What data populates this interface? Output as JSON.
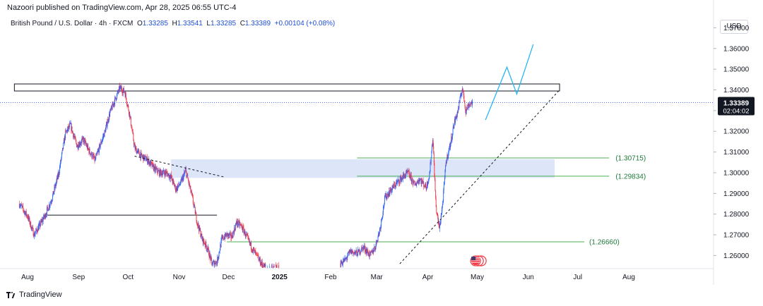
{
  "header": {
    "publisher": "Nazoori published on TradingView.com, Apr 28, 2025 06:55 UTC-4"
  },
  "legend": {
    "symbol": "British Pound / U.S. Dollar · 4h · FXCM",
    "open_label": "O",
    "open": "1.33285",
    "high_label": "H",
    "high": "1.33541",
    "low_label": "L",
    "low": "1.33285",
    "close_label": "C",
    "close": "1.33389",
    "change": "+0.00104 (+0.08%)"
  },
  "currency": "USD",
  "brand": "TradingView",
  "colors": {
    "up": "#2962ff",
    "down": "#f23645",
    "green_line": "#4caf50",
    "zone_fill": "#dce6f8",
    "projection": "#29b6f6",
    "price_tag": "#131722"
  },
  "chart_data": {
    "type": "candlestick",
    "y_ticks": [
      "1.37000",
      "1.36000",
      "1.35000",
      "1.34000",
      "1.33000",
      "1.32000",
      "1.31000",
      "1.30000",
      "1.29000",
      "1.28000",
      "1.27000",
      "1.26000"
    ],
    "ylim": [
      1.254,
      1.3773
    ],
    "x_ticks": [
      {
        "label": "Aug",
        "date": "2024-08-01"
      },
      {
        "label": "Sep",
        "date": "2024-09-01"
      },
      {
        "label": "Oct",
        "date": "2024-10-01"
      },
      {
        "label": "Nov",
        "date": "2024-11-01"
      },
      {
        "label": "Dec",
        "date": "2024-12-01"
      },
      {
        "label": "2025",
        "date": "2025-01-01",
        "bold": true
      },
      {
        "label": "Feb",
        "date": "2025-02-01"
      },
      {
        "label": "Mar",
        "date": "2025-03-01"
      },
      {
        "label": "Apr",
        "date": "2025-04-01"
      },
      {
        "label": "May",
        "date": "2025-05-01"
      },
      {
        "label": "Jun",
        "date": "2025-06-01"
      },
      {
        "label": "Jul",
        "date": "2025-07-01"
      },
      {
        "label": "Aug",
        "date": "2025-08-01"
      }
    ],
    "price_path": [
      [
        "2024-07-27",
        1.285
      ],
      [
        "2024-08-01",
        1.279
      ],
      [
        "2024-08-05",
        1.27
      ],
      [
        "2024-08-08",
        1.274
      ],
      [
        "2024-08-12",
        1.28
      ],
      [
        "2024-08-16",
        1.288
      ],
      [
        "2024-08-20",
        1.3
      ],
      [
        "2024-08-24",
        1.319
      ],
      [
        "2024-08-27",
        1.323
      ],
      [
        "2024-08-31",
        1.313
      ],
      [
        "2024-09-04",
        1.316
      ],
      [
        "2024-09-07",
        1.311
      ],
      [
        "2024-09-11",
        1.306
      ],
      [
        "2024-09-14",
        1.313
      ],
      [
        "2024-09-17",
        1.32
      ],
      [
        "2024-09-20",
        1.329
      ],
      [
        "2024-09-23",
        1.335
      ],
      [
        "2024-09-26",
        1.341
      ],
      [
        "2024-09-29",
        1.339
      ],
      [
        "2024-10-02",
        1.328
      ],
      [
        "2024-10-05",
        1.312
      ],
      [
        "2024-10-09",
        1.308
      ],
      [
        "2024-10-13",
        1.306
      ],
      [
        "2024-10-17",
        1.302
      ],
      [
        "2024-10-20",
        1.3
      ],
      [
        "2024-10-24",
        1.3
      ],
      [
        "2024-10-27",
        1.298
      ],
      [
        "2024-10-30",
        1.292
      ],
      [
        "2024-11-02",
        1.295
      ],
      [
        "2024-11-05",
        1.301
      ],
      [
        "2024-11-09",
        1.288
      ],
      [
        "2024-11-12",
        1.276
      ],
      [
        "2024-11-15",
        1.268
      ],
      [
        "2024-11-18",
        1.264
      ],
      [
        "2024-11-21",
        1.256
      ],
      [
        "2024-11-24",
        1.257
      ],
      [
        "2024-11-27",
        1.268
      ],
      [
        "2024-11-30",
        1.27
      ],
      [
        "2024-12-03",
        1.269
      ],
      [
        "2024-12-06",
        1.276
      ],
      [
        "2024-12-09",
        1.274
      ],
      [
        "2024-12-12",
        1.269
      ],
      [
        "2024-12-15",
        1.264
      ],
      [
        "2024-12-18",
        1.26
      ],
      [
        "2024-12-21",
        1.256
      ],
      [
        "2024-12-24",
        1.254
      ],
      [
        "2025-01-01",
        1.254
      ],
      [
        "2025-02-07",
        1.256
      ],
      [
        "2025-02-10",
        1.258
      ],
      [
        "2025-02-13",
        1.262
      ],
      [
        "2025-02-17",
        1.261
      ],
      [
        "2025-02-21",
        1.264
      ],
      [
        "2025-02-25",
        1.26
      ],
      [
        "2025-02-28",
        1.264
      ],
      [
        "2025-03-03",
        1.273
      ],
      [
        "2025-03-06",
        1.288
      ],
      [
        "2025-03-10",
        1.292
      ],
      [
        "2025-03-13",
        1.295
      ],
      [
        "2025-03-17",
        1.298
      ],
      [
        "2025-03-20",
        1.3
      ],
      [
        "2025-03-24",
        1.294
      ],
      [
        "2025-03-27",
        1.297
      ],
      [
        "2025-03-31",
        1.293
      ],
      [
        "2025-04-02",
        1.299
      ],
      [
        "2025-04-04",
        1.317
      ],
      [
        "2025-04-06",
        1.283
      ],
      [
        "2025-04-08",
        1.273
      ],
      [
        "2025-04-10",
        1.285
      ],
      [
        "2025-04-12",
        1.305
      ],
      [
        "2025-04-15",
        1.315
      ],
      [
        "2025-04-17",
        1.324
      ],
      [
        "2025-04-19",
        1.329
      ],
      [
        "2025-04-21",
        1.337
      ],
      [
        "2025-04-22",
        1.341
      ],
      [
        "2025-04-24",
        1.33
      ],
      [
        "2025-04-26",
        1.333
      ],
      [
        "2025-04-28",
        1.3339
      ]
    ],
    "gap_region": [
      "2025-01-01",
      "2025-02-07"
    ],
    "resistance_box": {
      "from": "2024-07-24",
      "to": "2025-06-20",
      "low": 1.3405,
      "high": 1.3422
    },
    "demand_zone": {
      "from": "2024-10-27",
      "to": "2025-06-17",
      "low": 1.2975,
      "high": 1.3065
    },
    "levels": [
      {
        "value": 1.30715,
        "label": "(1.30715)",
        "from": "2025-02-17",
        "to": "2025-07-20",
        "label_at": "2025-07-24"
      },
      {
        "value": 1.29834,
        "label": "(1.29834)",
        "from": "2025-02-17",
        "to": "2025-07-20",
        "label_at": "2025-07-24"
      },
      {
        "value": 1.2666,
        "label": "(1.26660)",
        "from": "2024-11-30",
        "to": "2025-07-05",
        "label_at": "2025-07-08"
      }
    ],
    "support_line": {
      "value": 1.2795,
      "from": "2024-08-13",
      "to": "2024-11-24"
    },
    "trendlines": [
      {
        "from": [
          "2024-10-05",
          1.308
        ],
        "to": [
          "2024-11-28",
          1.298
        ]
      },
      {
        "from": [
          "2025-03-15",
          1.256
        ],
        "to": [
          "2025-06-20",
          1.34
        ]
      }
    ],
    "projection": [
      [
        "2025-05-06",
        1.3255
      ],
      [
        "2025-05-19",
        1.351
      ],
      [
        "2025-05-25",
        1.338
      ],
      [
        "2025-06-04",
        1.362
      ]
    ],
    "current_price": {
      "value": 1.33389,
      "label": "1.33389",
      "countdown": "02:04:02"
    },
    "event_marker_date": "2025-04-30"
  }
}
